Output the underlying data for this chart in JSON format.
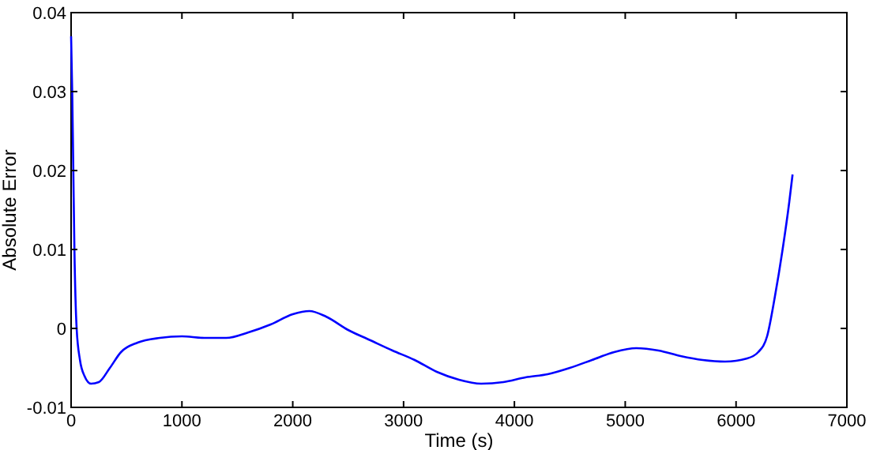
{
  "chart_data": {
    "type": "line",
    "xlabel": "Time (s)",
    "ylabel": "Absolute Error",
    "xlim": [
      0,
      7000
    ],
    "xticks": [
      0,
      1000,
      2000,
      3000,
      4000,
      5000,
      6000,
      7000
    ],
    "ylim": [
      -0.01,
      0.04
    ],
    "yticks": [
      -0.01,
      0,
      0.01,
      0.02,
      0.03,
      0.04
    ],
    "grid": false,
    "marker": "none",
    "line_style": "solid",
    "series": [
      {
        "color": "#0000ff",
        "x": [
          0,
          10,
          20,
          30,
          50,
          80,
          120,
          180,
          250,
          350,
          450,
          600,
          800,
          1000,
          1200,
          1400,
          1600,
          1800,
          2000,
          2150,
          2300,
          2500,
          2700,
          2900,
          3100,
          3300,
          3500,
          3700,
          3900,
          4100,
          4300,
          4500,
          4700,
          4900,
          5100,
          5300,
          5500,
          5700,
          5900,
          6100,
          6200,
          6280,
          6350,
          6420,
          6480,
          6510
        ],
        "values": [
          0.037,
          0.03,
          0.02,
          0.01,
          0,
          -0.004,
          -0.006,
          -0.007,
          -0.0068,
          -0.005,
          -0.003,
          -0.0018,
          -0.0012,
          -0.001,
          -0.0012,
          -0.0012,
          -0.0005,
          0.0005,
          0.0018,
          0.0022,
          0.0015,
          -0.0002,
          -0.0015,
          -0.0028,
          -0.004,
          -0.0055,
          -0.0065,
          -0.007,
          -0.0068,
          -0.0062,
          -0.0058,
          -0.005,
          -0.004,
          -0.003,
          -0.0025,
          -0.0028,
          -0.0035,
          -0.004,
          -0.0042,
          -0.0038,
          -0.003,
          -0.001,
          0.004,
          0.01,
          0.016,
          0.0195
        ]
      }
    ]
  }
}
